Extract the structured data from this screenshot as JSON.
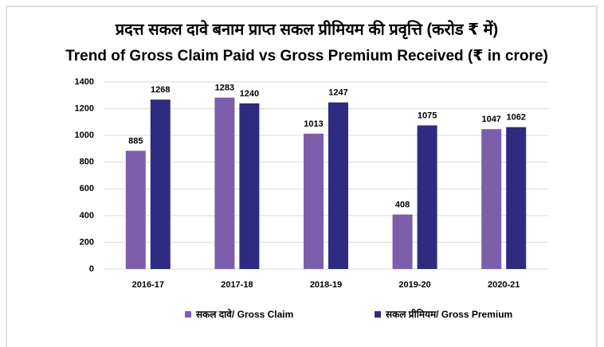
{
  "chart_data": {
    "type": "bar",
    "title": "प्रदत्त सकल दावे बनाम प्राप्त सकल प्रीमियम की प्रवृत्ति (करोड ₹ में)",
    "subtitle": "Trend of Gross Claim Paid vs Gross Premium Received (₹ in crore)",
    "categories": [
      "2016-17",
      "2017-18",
      "2018-19",
      "2019-20",
      "2020-21"
    ],
    "series": [
      {
        "name": "सकल दावे/ Gross Claim",
        "color": "#7c5fab",
        "values": [
          885,
          1283,
          1013,
          408,
          1047
        ]
      },
      {
        "name": "सकल प्रीमियम/ Gross Premium",
        "color": "#2f2b80",
        "values": [
          1268,
          1240,
          1247,
          1075,
          1062
        ]
      }
    ],
    "ylim": [
      0,
      1400
    ],
    "yticks": [
      0,
      200,
      400,
      600,
      800,
      1000,
      1200,
      1400
    ],
    "grid": true,
    "legend": "bottom"
  }
}
